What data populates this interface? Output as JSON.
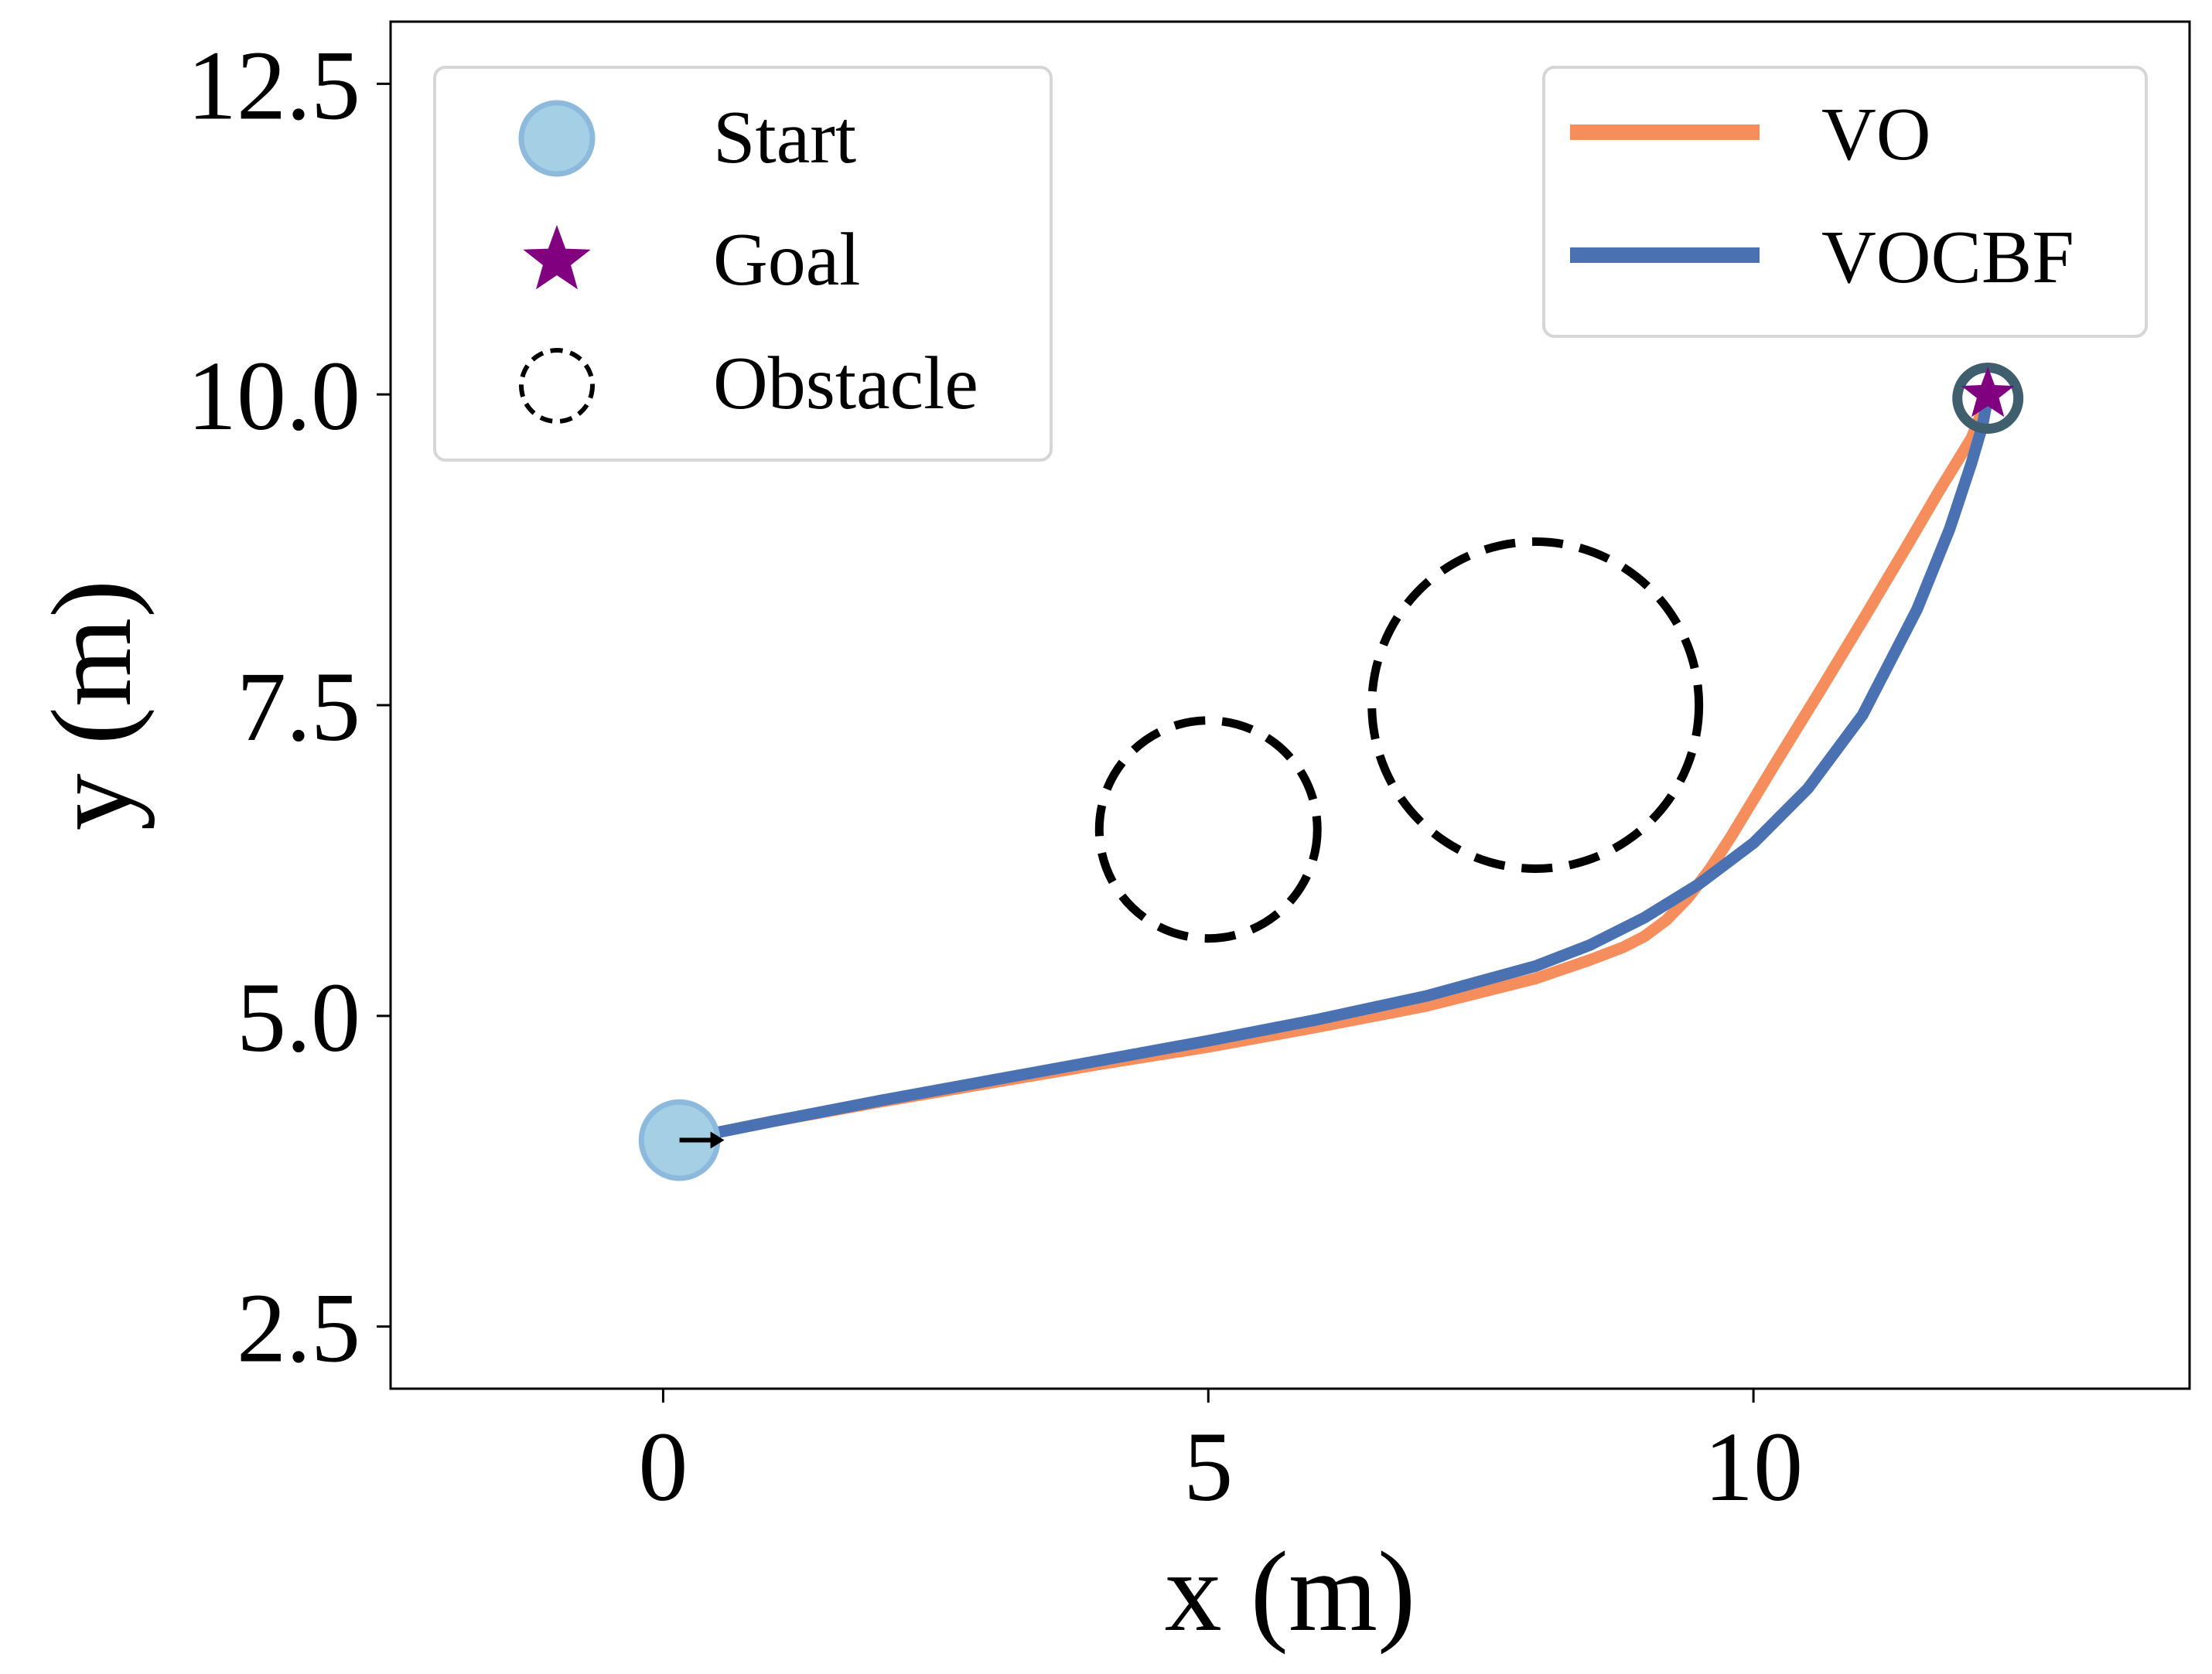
{
  "chart_data": {
    "type": "line",
    "title": "",
    "xlabel": "x (m)",
    "ylabel": "y (m)",
    "xlim": [
      -2.5,
      14.0
    ],
    "ylim": [
      2.0,
      13.0
    ],
    "x_ticks": [
      {
        "value": 0,
        "label": "0"
      },
      {
        "value": 5,
        "label": "5"
      },
      {
        "value": 10,
        "label": "10"
      }
    ],
    "y_ticks": [
      {
        "value": 2.5,
        "label": "2.5"
      },
      {
        "value": 5.0,
        "label": "5.0"
      },
      {
        "value": 7.5,
        "label": "7.5"
      },
      {
        "value": 10.0,
        "label": "10.0"
      },
      {
        "value": 12.5,
        "label": "12.5"
      }
    ],
    "grid": false,
    "series": [
      {
        "name": "VO",
        "color": "#f58d5c",
        "x": [
          0.15,
          1.0,
          2.0,
          3.0,
          4.0,
          5.0,
          6.0,
          7.0,
          8.0,
          8.5,
          8.8,
          9.0,
          9.2,
          9.4,
          9.6,
          9.8,
          10.2,
          10.6,
          11.0,
          11.4,
          11.7,
          12.0,
          12.15
        ],
        "y": [
          4.0,
          4.15,
          4.31,
          4.46,
          4.61,
          4.75,
          4.91,
          5.08,
          5.3,
          5.45,
          5.55,
          5.64,
          5.77,
          5.95,
          6.18,
          6.45,
          7.03,
          7.6,
          8.18,
          8.77,
          9.22,
          9.65,
          9.98
        ]
      },
      {
        "name": "VOCBF",
        "color": "#4a72b3",
        "x": [
          0.15,
          1.0,
          2.0,
          3.0,
          4.0,
          5.0,
          6.0,
          7.0,
          8.0,
          8.5,
          9.0,
          9.5,
          10.0,
          10.5,
          11.0,
          11.5,
          11.8,
          12.0,
          12.1,
          12.15
        ],
        "y": [
          4.0,
          4.15,
          4.32,
          4.48,
          4.64,
          4.8,
          4.97,
          5.16,
          5.4,
          5.57,
          5.79,
          6.06,
          6.39,
          6.83,
          7.42,
          8.27,
          8.92,
          9.45,
          9.75,
          9.98
        ]
      }
    ],
    "start": {
      "label": "Start",
      "x": 0.15,
      "y": 4.0,
      "radius": 0.35,
      "color": "#a5cfe5",
      "edge_color": "#8cb9dc"
    },
    "goal": {
      "label": "Goal",
      "x": 12.15,
      "y": 10.0,
      "color": "#800080"
    },
    "goal_ring": {
      "x": 12.15,
      "y": 9.97,
      "radius": 0.28,
      "color": "#3f5e6e"
    },
    "obstacles": [
      {
        "x": 5.0,
        "y": 6.5,
        "radius": 1.0
      },
      {
        "x": 8.0,
        "y": 7.5,
        "radius": 1.5
      }
    ],
    "obstacle_label": "Obstacle",
    "legends": {
      "markers": {
        "location": "upper-left",
        "entries": [
          "Start",
          "Goal",
          "Obstacle"
        ]
      },
      "lines": {
        "location": "upper-right",
        "entries": [
          "VO",
          "VOCBF"
        ]
      }
    }
  }
}
